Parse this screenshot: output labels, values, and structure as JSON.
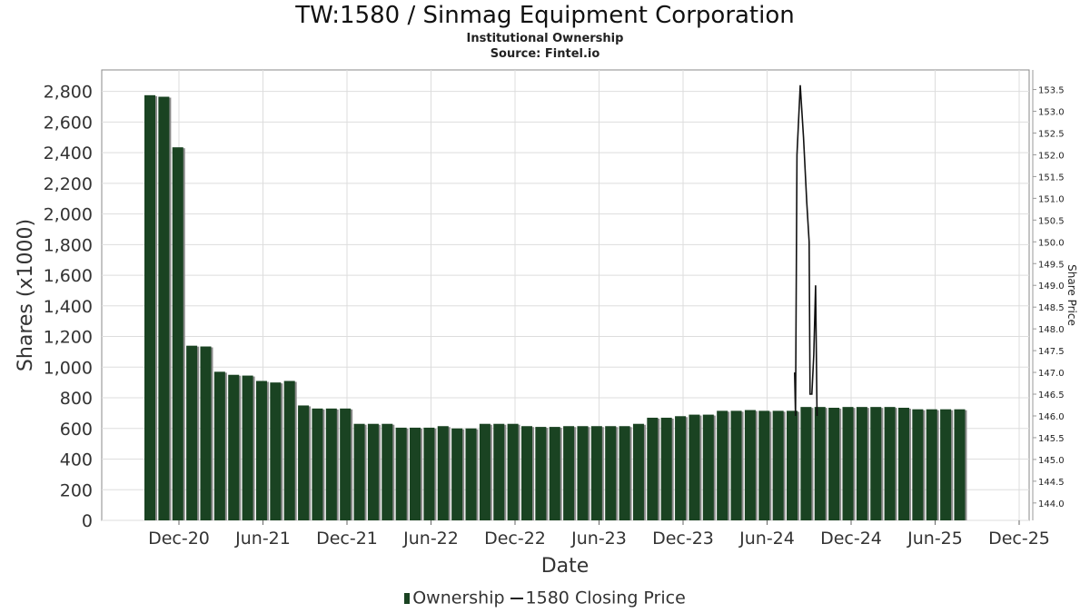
{
  "title": "TW:1580 / Sinmag Equipment Corporation",
  "subtitle": "Institutional Ownership",
  "source": "Source: Fintel.io",
  "colors": {
    "bar": "#1a4322",
    "bar_shadow": "#8a8a8a",
    "line": "#111111",
    "grid": "#dddddd"
  },
  "chart_data": {
    "type": "bar",
    "xlabel": "Date",
    "ylabel": "Shares (x1000)",
    "y2label": "Share Price",
    "ylim": [
      0,
      2940
    ],
    "y2lim": [
      143.6,
      153.95
    ],
    "grid": true,
    "legend_position": "bottom",
    "x_ticks": [
      "Dec-20",
      "Jun-21",
      "Dec-21",
      "Jun-22",
      "Dec-22",
      "Jun-23",
      "Dec-23",
      "Jun-24",
      "Dec-24",
      "Jun-25",
      "Dec-25"
    ],
    "y_ticks": [
      0,
      200,
      400,
      600,
      800,
      1000,
      1200,
      1400,
      1600,
      1800,
      2000,
      2200,
      2400,
      2600,
      2800
    ],
    "y_tick_labels": [
      "0",
      "200",
      "400",
      "600",
      "800",
      "1,000",
      "1,200",
      "1,400",
      "1,600",
      "1,800",
      "2,000",
      "2,200",
      "2,400",
      "2,600",
      "2,800"
    ],
    "y2_ticks": [
      144.0,
      144.5,
      145.0,
      145.5,
      146.0,
      146.5,
      147.0,
      147.5,
      148.0,
      148.5,
      149.0,
      149.5,
      150.0,
      150.5,
      151.0,
      151.5,
      152.0,
      152.5,
      153.0,
      153.5
    ],
    "y2_tick_labels": [
      "144.0",
      "144.5",
      "145.0",
      "145.5",
      "146.0",
      "146.5",
      "147.0",
      "147.5",
      "148.0",
      "148.5",
      "149.0",
      "149.5",
      "150.0",
      "150.5",
      "151.0",
      "151.5",
      "152.0",
      "152.5",
      "153.0",
      "153.5"
    ],
    "series": [
      {
        "name": "Ownership",
        "type": "bar",
        "values": [
          2775,
          2765,
          2435,
          1140,
          1135,
          970,
          950,
          945,
          910,
          900,
          910,
          750,
          730,
          730,
          730,
          630,
          630,
          630,
          605,
          605,
          605,
          615,
          600,
          600,
          630,
          630,
          630,
          615,
          610,
          610,
          615,
          615,
          615,
          615,
          615,
          630,
          670,
          670,
          680,
          690,
          690,
          715,
          715,
          720,
          715,
          715,
          715,
          740,
          740,
          735,
          740,
          740,
          740,
          740,
          735,
          725,
          725,
          725,
          725
        ]
      },
      {
        "name": "1580 Closing Price",
        "type": "line",
        "points": [
          [
            "2024-07-30",
            147.0
          ],
          [
            "2024-08-02",
            146.0
          ],
          [
            "2024-08-05",
            152.0
          ],
          [
            "2024-08-12",
            153.6
          ],
          [
            "2024-08-19",
            152.4
          ],
          [
            "2024-08-26",
            150.9
          ],
          [
            "2024-08-31",
            150.0
          ],
          [
            "2024-09-03",
            146.5
          ],
          [
            "2024-09-07",
            146.5
          ],
          [
            "2024-09-11",
            147.4
          ],
          [
            "2024-09-15",
            149.0
          ],
          [
            "2024-09-18",
            146.0
          ]
        ]
      }
    ]
  }
}
